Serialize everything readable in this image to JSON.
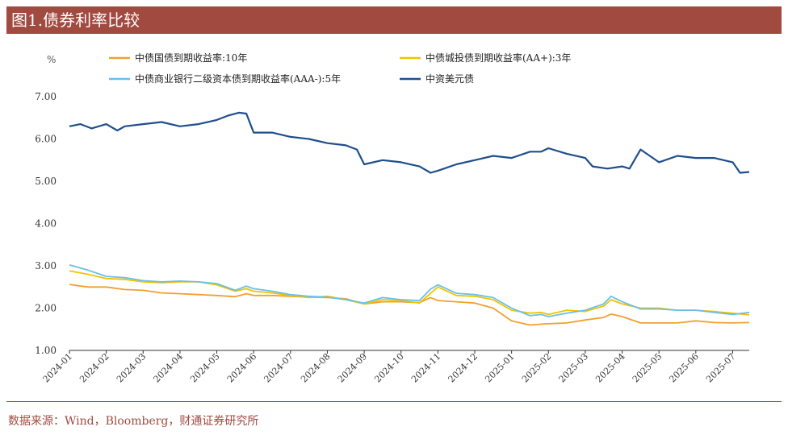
{
  "title": "图1.债券利率比较",
  "source": "数据来源：Wind，Bloomberg，财通证券研究所",
  "chart_data": {
    "type": "line",
    "ylabel": "%",
    "ylim": [
      1.0,
      7.0
    ],
    "yticks": [
      "1.00",
      "2.00",
      "3.00",
      "4.00",
      "5.00",
      "6.00",
      "7.00"
    ],
    "xticks": [
      "2024-01",
      "2024-02",
      "2024-03",
      "2024-04",
      "2024-05",
      "2024-06",
      "2024-07",
      "2024-08",
      "2024-09",
      "2024-10",
      "2024-11",
      "2024-12",
      "2025-01",
      "2025-02",
      "2025-03",
      "2025-04",
      "2025-05",
      "2025-06",
      "2025-07"
    ],
    "xmax": 18.45,
    "legend_position": "top",
    "series": [
      {
        "name": "中债国债到期收益率:10年",
        "color": "#f0a030",
        "x": [
          0,
          0.5,
          1,
          1.5,
          2,
          2.5,
          3,
          3.5,
          4,
          4.5,
          4.8,
          5,
          5.5,
          6,
          6.5,
          7,
          7.5,
          8,
          8.5,
          9,
          9.5,
          9.8,
          10,
          10.5,
          11,
          11.5,
          12,
          12.5,
          12.8,
          13,
          13.5,
          14,
          14.5,
          14.7,
          15,
          15.5,
          16,
          16.5,
          17,
          17.5,
          18,
          18.45
        ],
        "y": [
          2.56,
          2.5,
          2.5,
          2.44,
          2.42,
          2.36,
          2.34,
          2.32,
          2.3,
          2.27,
          2.34,
          2.3,
          2.3,
          2.28,
          2.26,
          2.25,
          2.22,
          2.1,
          2.15,
          2.15,
          2.13,
          2.25,
          2.18,
          2.15,
          2.12,
          2.0,
          1.7,
          1.6,
          1.62,
          1.63,
          1.65,
          1.72,
          1.78,
          1.86,
          1.8,
          1.65,
          1.65,
          1.65,
          1.7,
          1.66,
          1.65,
          1.66
        ]
      },
      {
        "name": "中债城投债到期收益率(AA+):3年",
        "color": "#f2c200",
        "x": [
          0,
          0.5,
          1,
          1.5,
          2,
          2.5,
          3,
          3.5,
          4,
          4.5,
          4.8,
          5,
          5.5,
          6,
          6.5,
          7,
          7.5,
          8,
          8.5,
          9,
          9.5,
          9.8,
          10,
          10.5,
          11,
          11.5,
          12,
          12.5,
          12.8,
          13,
          13.5,
          14,
          14.5,
          14.7,
          15,
          15.5,
          16,
          16.5,
          17,
          17.5,
          18,
          18.45
        ],
        "y": [
          2.88,
          2.8,
          2.7,
          2.68,
          2.62,
          2.6,
          2.62,
          2.62,
          2.55,
          2.4,
          2.46,
          2.4,
          2.36,
          2.3,
          2.25,
          2.28,
          2.2,
          2.1,
          2.2,
          2.18,
          2.12,
          2.35,
          2.5,
          2.3,
          2.28,
          2.2,
          1.95,
          1.88,
          1.9,
          1.85,
          1.95,
          1.92,
          2.05,
          2.2,
          2.1,
          2.0,
          2.0,
          1.95,
          1.95,
          1.92,
          1.88,
          1.84
        ]
      },
      {
        "name": "中债商业银行二级资本债到期收益率(AAA-):5年",
        "color": "#68c0e8",
        "x": [
          0,
          0.5,
          1,
          1.5,
          2,
          2.5,
          3,
          3.5,
          4,
          4.5,
          4.8,
          5,
          5.5,
          6,
          6.5,
          7,
          7.5,
          8,
          8.5,
          9,
          9.5,
          9.8,
          10,
          10.5,
          11,
          11.5,
          12,
          12.5,
          12.8,
          13,
          13.5,
          14,
          14.5,
          14.7,
          15,
          15.5,
          16,
          16.5,
          17,
          17.5,
          18,
          18.45
        ],
        "y": [
          3.02,
          2.9,
          2.75,
          2.72,
          2.65,
          2.62,
          2.64,
          2.62,
          2.58,
          2.42,
          2.52,
          2.46,
          2.4,
          2.32,
          2.28,
          2.26,
          2.2,
          2.12,
          2.25,
          2.2,
          2.18,
          2.45,
          2.55,
          2.35,
          2.32,
          2.25,
          2.0,
          1.82,
          1.85,
          1.8,
          1.88,
          1.95,
          2.1,
          2.28,
          2.15,
          1.98,
          1.98,
          1.95,
          1.95,
          1.9,
          1.85,
          1.9
        ]
      },
      {
        "name": "中资美元债",
        "color": "#1f4e8c",
        "x": [
          0,
          0.3,
          0.6,
          1,
          1.3,
          1.5,
          2,
          2.5,
          3,
          3.5,
          4,
          4.3,
          4.6,
          4.8,
          5,
          5.5,
          6,
          6.5,
          7,
          7.5,
          7.8,
          8,
          8.5,
          9,
          9.5,
          9.8,
          10,
          10.5,
          11,
          11.5,
          12,
          12.5,
          12.8,
          13,
          13.5,
          14,
          14.2,
          14.6,
          15,
          15.2,
          15.5,
          16,
          16.5,
          17,
          17.5,
          18,
          18.2,
          18.45
        ],
        "y": [
          6.3,
          6.35,
          6.25,
          6.35,
          6.2,
          6.3,
          6.35,
          6.4,
          6.3,
          6.35,
          6.45,
          6.55,
          6.62,
          6.6,
          6.15,
          6.15,
          6.05,
          6.0,
          5.9,
          5.85,
          5.75,
          5.4,
          5.5,
          5.45,
          5.35,
          5.2,
          5.25,
          5.4,
          5.5,
          5.6,
          5.55,
          5.7,
          5.7,
          5.78,
          5.65,
          5.55,
          5.35,
          5.3,
          5.35,
          5.3,
          5.75,
          5.45,
          5.6,
          5.55,
          5.55,
          5.45,
          5.2,
          5.22
        ]
      }
    ]
  }
}
